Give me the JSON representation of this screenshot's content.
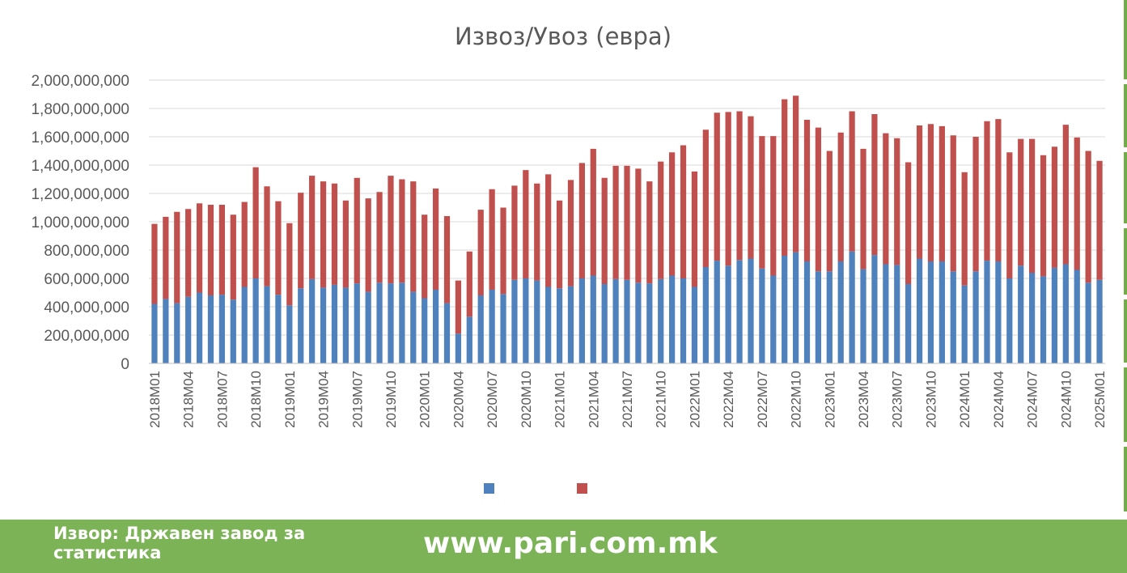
{
  "footer": {
    "source": "Извор: Државен завод за статистика",
    "website": "www.pari.com.mk"
  },
  "colors": {
    "export": "#4f81bd",
    "import": "#c0504d",
    "footer": "#7cb356"
  },
  "chart_data": {
    "type": "bar",
    "stacked": true,
    "title": "Извоз/Увоз (евра)",
    "xlabel": "",
    "ylabel": "",
    "ylim": [
      0,
      2000000000
    ],
    "yticks": [
      0,
      200000000,
      400000000,
      600000000,
      800000000,
      1000000000,
      1200000000,
      1400000000,
      1600000000,
      1800000000,
      2000000000
    ],
    "ytick_labels": [
      "0",
      "200,000,000",
      "400,000,000",
      "600,000,000",
      "800,000,000",
      "1,000,000,000",
      "1,200,000,000",
      "1,400,000,000",
      "1,600,000,000",
      "1,800,000,000",
      "2,000,000,000"
    ],
    "grid": true,
    "legend": "bottom",
    "categories": [
      "2018M01",
      "2018M02",
      "2018M03",
      "2018M04",
      "2018M05",
      "2018M06",
      "2018M07",
      "2018M08",
      "2018M09",
      "2018M10",
      "2018M11",
      "2018M12",
      "2019M01",
      "2019M02",
      "2019M03",
      "2019M04",
      "2019M05",
      "2019M06",
      "2019M07",
      "2019M08",
      "2019M09",
      "2019M10",
      "2019M11",
      "2019M12",
      "2020M01",
      "2020M02",
      "2020M03",
      "2020M04",
      "2020M05",
      "2020M06",
      "2020M07",
      "2020M08",
      "2020M09",
      "2020M10",
      "2020M11",
      "2020M12",
      "2021M01",
      "2021M02",
      "2021M03",
      "2021M04",
      "2021M05",
      "2021M06",
      "2021M07",
      "2021M08",
      "2021M09",
      "2021M10",
      "2021M11",
      "2021M12",
      "2022M01",
      "2022M02",
      "2022M03",
      "2022M04",
      "2022M05",
      "2022M06",
      "2022M07",
      "2022M08",
      "2022M09",
      "2022M10",
      "2022M11",
      "2022M12",
      "2023M01",
      "2023M02",
      "2023M03",
      "2023M04",
      "2023M05",
      "2023M06",
      "2023M07",
      "2023M08",
      "2023M09",
      "2023M10",
      "2023M11",
      "2023M12",
      "2024M01",
      "2024M02",
      "2024M03",
      "2024M04",
      "2024M05",
      "2024M06",
      "2024M07",
      "2024M08",
      "2024M09",
      "2024M10",
      "2024M11",
      "2024M12",
      "2025M01"
    ],
    "tick_labels": [
      "2018M01",
      "2018M04",
      "2018M07",
      "2018M10",
      "2019M01",
      "2019M04",
      "2019M07",
      "2019M10",
      "2020M01",
      "2020M04",
      "2020M07",
      "2020M10",
      "2021M01",
      "2021M04",
      "2021M07",
      "2021M10",
      "2022M01",
      "2022M04",
      "2022M07",
      "2022M10",
      "2023M01",
      "2023M04",
      "2023M07",
      "2023M10",
      "2024M01",
      "2024M04",
      "2024M07",
      "2024M10",
      "2025M01"
    ],
    "series": [
      {
        "name": "",
        "color": "#4f81bd",
        "values": [
          420000000,
          455000000,
          425000000,
          470000000,
          500000000,
          480000000,
          485000000,
          450000000,
          540000000,
          600000000,
          545000000,
          485000000,
          410000000,
          530000000,
          595000000,
          535000000,
          555000000,
          535000000,
          565000000,
          505000000,
          570000000,
          565000000,
          570000000,
          505000000,
          460000000,
          520000000,
          425000000,
          210000000,
          330000000,
          480000000,
          520000000,
          490000000,
          590000000,
          600000000,
          585000000,
          540000000,
          530000000,
          545000000,
          600000000,
          620000000,
          560000000,
          595000000,
          590000000,
          570000000,
          565000000,
          595000000,
          620000000,
          600000000,
          540000000,
          680000000,
          725000000,
          690000000,
          730000000,
          740000000,
          670000000,
          620000000,
          760000000,
          785000000,
          720000000,
          650000000,
          650000000,
          720000000,
          790000000,
          665000000,
          765000000,
          700000000,
          695000000,
          560000000,
          740000000,
          720000000,
          720000000,
          650000000,
          550000000,
          650000000,
          725000000,
          720000000,
          600000000,
          690000000,
          640000000,
          615000000,
          675000000,
          700000000,
          660000000,
          570000000,
          590000000
        ]
      },
      {
        "name": "",
        "color": "#c0504d",
        "values": [
          565000000,
          580000000,
          645000000,
          620000000,
          630000000,
          640000000,
          635000000,
          600000000,
          600000000,
          785000000,
          705000000,
          660000000,
          580000000,
          675000000,
          730000000,
          750000000,
          715000000,
          615000000,
          745000000,
          660000000,
          640000000,
          760000000,
          730000000,
          780000000,
          590000000,
          715000000,
          615000000,
          375000000,
          460000000,
          605000000,
          710000000,
          610000000,
          665000000,
          765000000,
          685000000,
          795000000,
          620000000,
          750000000,
          815000000,
          895000000,
          750000000,
          800000000,
          805000000,
          805000000,
          720000000,
          830000000,
          870000000,
          940000000,
          815000000,
          970000000,
          1045000000,
          1085000000,
          1050000000,
          1005000000,
          935000000,
          985000000,
          1105000000,
          1105000000,
          1000000000,
          1015000000,
          850000000,
          910000000,
          990000000,
          850000000,
          995000000,
          925000000,
          895000000,
          860000000,
          940000000,
          970000000,
          955000000,
          960000000,
          800000000,
          950000000,
          985000000,
          1005000000,
          890000000,
          895000000,
          945000000,
          855000000,
          855000000,
          985000000,
          935000000,
          930000000,
          840000000
        ]
      }
    ]
  }
}
